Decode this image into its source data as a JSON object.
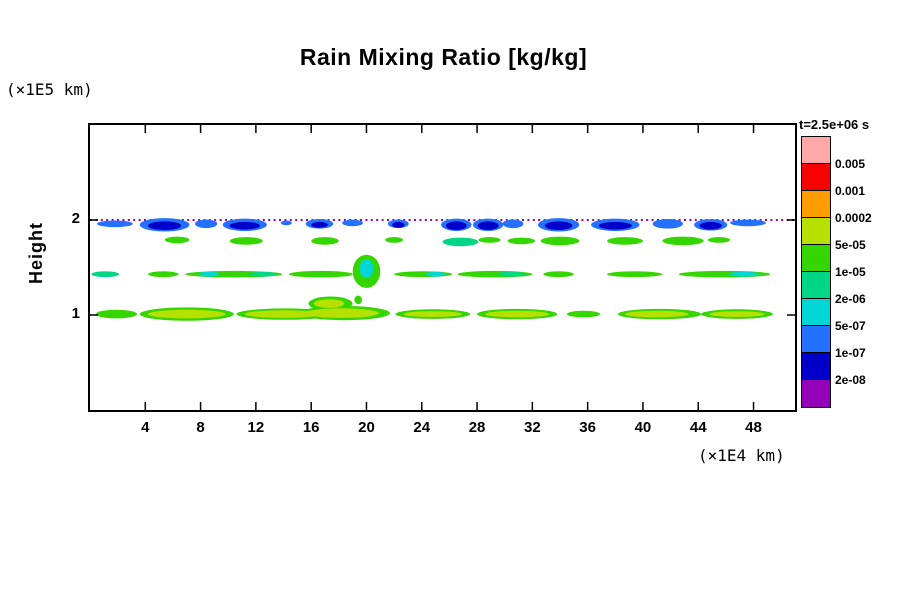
{
  "chart_data": {
    "type": "filled-contour",
    "title": "Rain Mixing Ratio [kg/kg]",
    "ylabel": "Height",
    "ylabel_unit": "(×1E5 km)",
    "xlabel_unit": "(×1E4 km)",
    "time_annotation": "t=2.5e+06 s",
    "xlim": [
      0,
      51
    ],
    "ylim": [
      0,
      3
    ],
    "x_ticks": [
      4,
      8,
      12,
      16,
      20,
      24,
      28,
      32,
      36,
      40,
      44,
      48
    ],
    "y_ticks": [
      1,
      2
    ],
    "grid": false,
    "legend_position": "right",
    "levels": [
      "0.005",
      "0.001",
      "0.0002",
      "5e-05",
      "1e-05",
      "2e-06",
      "5e-07",
      "1e-07",
      "2e-08"
    ],
    "colorbar_colors": [
      "#ffa8a8",
      "#fb0000",
      "#ff9c00",
      "#b6e000",
      "#35d600",
      "#00d685",
      "#00d6d6",
      "#2471ff",
      "#0000c8",
      "#9400b8"
    ],
    "palette": {
      "yg": "#b6e000",
      "gr": "#35d600",
      "tl": "#00d685",
      "cy": "#00d6d6",
      "bl": "#2471ff",
      "nv": "#0000c8",
      "pu": "#9400b8"
    },
    "dotted_line": {
      "y": 2.0,
      "color_key": "pu"
    },
    "blob_format": [
      "color_key",
      "x_center",
      "y_center",
      "width",
      "height"
    ],
    "blobs": [
      [
        "gr",
        1.9,
        1.01,
        3.0,
        0.09
      ],
      [
        "gr",
        7.0,
        1.01,
        6.8,
        0.14
      ],
      [
        "gr",
        14.1,
        1.01,
        7.0,
        0.12
      ],
      [
        "gr",
        18.4,
        1.02,
        6.6,
        0.15
      ],
      [
        "gr",
        17.4,
        1.12,
        3.2,
        0.15
      ],
      [
        "gr",
        24.8,
        1.01,
        5.4,
        0.1
      ],
      [
        "gr",
        30.9,
        1.01,
        5.8,
        0.11
      ],
      [
        "gr",
        35.7,
        1.01,
        2.4,
        0.07
      ],
      [
        "gr",
        41.2,
        1.01,
        6.0,
        0.11
      ],
      [
        "gr",
        46.8,
        1.01,
        5.2,
        0.1
      ],
      [
        "yg",
        7.0,
        1.01,
        5.6,
        0.09
      ],
      [
        "yg",
        14.0,
        1.01,
        5.6,
        0.08
      ],
      [
        "yg",
        18.2,
        1.02,
        5.4,
        0.1
      ],
      [
        "yg",
        17.3,
        1.12,
        2.2,
        0.09
      ],
      [
        "yg",
        24.8,
        1.01,
        4.2,
        0.06
      ],
      [
        "yg",
        30.9,
        1.01,
        4.6,
        0.07
      ],
      [
        "yg",
        41.0,
        1.01,
        4.6,
        0.07
      ],
      [
        "yg",
        46.8,
        1.01,
        4.0,
        0.06
      ],
      [
        "tl",
        1.1,
        1.43,
        2.0,
        0.06
      ],
      [
        "gr",
        5.3,
        1.43,
        2.2,
        0.06
      ],
      [
        "gr",
        10.4,
        1.43,
        7.0,
        0.07
      ],
      [
        "cy",
        8.6,
        1.43,
        1.5,
        0.05
      ],
      [
        "tl",
        12.5,
        1.43,
        2.0,
        0.05
      ],
      [
        "gr",
        16.7,
        1.43,
        4.6,
        0.07
      ],
      [
        "gr",
        20.0,
        1.46,
        2.0,
        0.35
      ],
      [
        "cy",
        20.0,
        1.49,
        1.0,
        0.2
      ],
      [
        "gr",
        19.4,
        1.16,
        0.55,
        0.09
      ],
      [
        "gr",
        24.1,
        1.43,
        4.2,
        0.06
      ],
      [
        "cy",
        25.0,
        1.43,
        1.4,
        0.05
      ],
      [
        "gr",
        29.3,
        1.43,
        5.4,
        0.07
      ],
      [
        "tl",
        30.5,
        1.43,
        2.0,
        0.05
      ],
      [
        "gr",
        33.9,
        1.43,
        2.2,
        0.06
      ],
      [
        "gr",
        39.4,
        1.43,
        4.0,
        0.06
      ],
      [
        "gr",
        45.9,
        1.43,
        6.6,
        0.07
      ],
      [
        "cy",
        47.3,
        1.43,
        2.2,
        0.05
      ],
      [
        "gr",
        6.3,
        1.79,
        1.8,
        0.07
      ],
      [
        "gr",
        11.3,
        1.78,
        2.4,
        0.08
      ],
      [
        "gr",
        17.0,
        1.78,
        2.0,
        0.08
      ],
      [
        "gr",
        22.0,
        1.79,
        1.3,
        0.06
      ],
      [
        "tl",
        26.8,
        1.77,
        2.6,
        0.09
      ],
      [
        "gr",
        28.9,
        1.79,
        1.6,
        0.06
      ],
      [
        "gr",
        31.2,
        1.78,
        2.0,
        0.07
      ],
      [
        "gr",
        34.0,
        1.78,
        2.8,
        0.09
      ],
      [
        "gr",
        38.7,
        1.78,
        2.6,
        0.08
      ],
      [
        "gr",
        42.9,
        1.78,
        3.0,
        0.09
      ],
      [
        "gr",
        45.5,
        1.79,
        1.6,
        0.06
      ],
      [
        "bl",
        1.8,
        1.96,
        2.6,
        0.07
      ],
      [
        "bl",
        5.4,
        1.95,
        3.6,
        0.14
      ],
      [
        "bl",
        8.4,
        1.96,
        1.6,
        0.09
      ],
      [
        "bl",
        11.2,
        1.95,
        3.2,
        0.13
      ],
      [
        "bl",
        14.2,
        1.97,
        0.8,
        0.05
      ],
      [
        "bl",
        16.6,
        1.96,
        2.0,
        0.1
      ],
      [
        "bl",
        19.0,
        1.97,
        1.5,
        0.07
      ],
      [
        "bl",
        22.3,
        1.96,
        1.5,
        0.09
      ],
      [
        "bl",
        26.5,
        1.95,
        2.2,
        0.13
      ],
      [
        "bl",
        28.8,
        1.95,
        2.2,
        0.13
      ],
      [
        "bl",
        30.6,
        1.96,
        1.5,
        0.09
      ],
      [
        "bl",
        33.9,
        1.95,
        3.0,
        0.14
      ],
      [
        "bl",
        38.0,
        1.95,
        3.5,
        0.13
      ],
      [
        "bl",
        41.8,
        1.96,
        2.2,
        0.1
      ],
      [
        "bl",
        44.9,
        1.95,
        2.4,
        0.12
      ],
      [
        "bl",
        47.6,
        1.97,
        2.6,
        0.07
      ],
      [
        "nv",
        5.4,
        1.94,
        2.4,
        0.09
      ],
      [
        "nv",
        11.2,
        1.94,
        2.2,
        0.08
      ],
      [
        "nv",
        16.6,
        1.95,
        1.2,
        0.06
      ],
      [
        "nv",
        22.3,
        1.95,
        0.9,
        0.06
      ],
      [
        "nv",
        26.5,
        1.94,
        1.5,
        0.09
      ],
      [
        "nv",
        28.8,
        1.94,
        1.5,
        0.09
      ],
      [
        "nv",
        33.9,
        1.94,
        2.0,
        0.09
      ],
      [
        "nv",
        38.0,
        1.94,
        2.4,
        0.08
      ],
      [
        "nv",
        44.9,
        1.94,
        1.6,
        0.08
      ]
    ]
  }
}
